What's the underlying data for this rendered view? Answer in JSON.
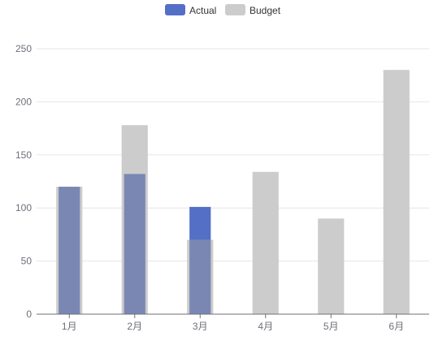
{
  "chart_data": {
    "type": "bar",
    "categories": [
      "1月",
      "2月",
      "3月",
      "4月",
      "5月",
      "6月"
    ],
    "series": [
      {
        "name": "Actual",
        "values": [
          120,
          132,
          101,
          null,
          null,
          null
        ],
        "color": "#5470c6"
      },
      {
        "name": "Budget",
        "values": [
          120,
          178,
          70,
          134,
          90,
          230
        ],
        "color": "#cccccc"
      }
    ],
    "overlay_color": "#7b87b3",
    "ylim": [
      0,
      250
    ],
    "yticks": [
      0,
      50,
      100,
      150,
      200,
      250
    ],
    "grid": true,
    "legend": "top-center",
    "title": "",
    "xlabel": "",
    "ylabel": ""
  }
}
